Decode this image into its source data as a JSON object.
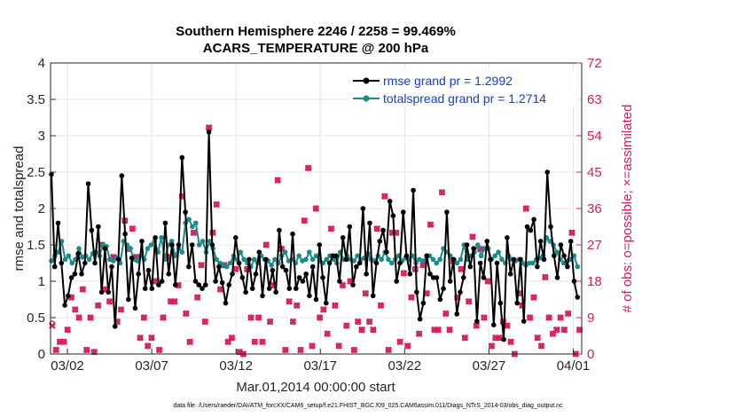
{
  "chart_data": {
    "type": "line",
    "title_line1": "Southern Hemisphere 2246 / 2258 = 99.469%",
    "title_line2": "ACARS_TEMPERATURE @ 200 hPa",
    "xlabel": "Mar.01,2014 00:00:00 start",
    "ylabel_left": "rmse and totalspread",
    "ylabel_right": "# of obs: o=possible; ×=assimilated",
    "ylim_left": [
      0,
      4
    ],
    "ylim_right": [
      0,
      72
    ],
    "xlim_days": [
      0,
      31.5
    ],
    "x_ticks": [
      {
        "day": 1,
        "label": "03/02"
      },
      {
        "day": 6,
        "label": "03/07"
      },
      {
        "day": 11,
        "label": "03/12"
      },
      {
        "day": 16,
        "label": "03/17"
      },
      {
        "day": 21,
        "label": "03/22"
      },
      {
        "day": 26,
        "label": "03/27"
      },
      {
        "day": 31,
        "label": "04/01"
      }
    ],
    "y_ticks_left": [
      "0",
      "0.5",
      "1",
      "1.5",
      "2",
      "2.5",
      "3",
      "3.5",
      "4"
    ],
    "y_ticks_right": [
      "0",
      "9",
      "18",
      "27",
      "36",
      "45",
      "54",
      "63",
      "72"
    ],
    "footer": "data file: /Users/raeder/DAI/ATM_forcXX/CAM6_setup/f.e21.FHIST_BGC.f09_025.CAM6assim.011/Diags_NTrS_2014-03/obs_diag_output.nc",
    "colors": {
      "rmse": "#000000",
      "spread": "#1a8a8a",
      "obs": "#d81b60",
      "legend_text": "#1a3ccf"
    },
    "series": [
      {
        "name": "rmse grand pr = 1.2992",
        "values": [
          2.47,
          1.2,
          1.8,
          1.25,
          0.67,
          0.8,
          1.05,
          1.1,
          1.38,
          1.1,
          1.25,
          2.34,
          1.7,
          1.25,
          1.75,
          0.85,
          1.45,
          0.85,
          1.2,
          0.38,
          1.3,
          2.45,
          1.65,
          0.75,
          1.32,
          0.63,
          1.1,
          1.55,
          0.9,
          1.15,
          0.9,
          1.6,
          0.95,
          1.0,
          1.8,
          1.1,
          1.5,
          0.95,
          1.5,
          2.7,
          1.95,
          1.2,
          1.5,
          1.0,
          0.95,
          0.9,
          0.95,
          3.05,
          1.5,
          1.0,
          1.2,
          0.98,
          0.7,
          0.95,
          1.1,
          1.6,
          1.25,
          1.05,
          0.85,
          1.3,
          0.9,
          1.1,
          1.4,
          0.8,
          1.3,
          0.9,
          1.15,
          0.85,
          1.7,
          1.2,
          1.15,
          0.9,
          1.65,
          0.9,
          1.05,
          1.0,
          1.1,
          0.8,
          1.2,
          0.75,
          1.5,
          1.05,
          0.7,
          1.25,
          1.35,
          1.35,
          1.0,
          1.6,
          1.3,
          1.75,
          0.95,
          1.2,
          1.25,
          2.0,
          1.1,
          1.8,
          0.8,
          1.25,
          1.55,
          1.7,
          1.4,
          2.1,
          1.9,
          1.0,
          1.25,
          1.95,
          1.35,
          1.1,
          2.25,
          0.85,
          0.48,
          0.7,
          1.35,
          1.1,
          1.05,
          1.05,
          0.75,
          0.9,
          1.95,
          1.0,
          1.3,
          0.55,
          0.85,
          1.05,
          1.5,
          1.2,
          1.45,
          0.45,
          1.25,
          1.05,
          1.55,
          1.3,
          0.4,
          1.25,
          0.7,
          0.2,
          1.6,
          1.1,
          1.3,
          0.7,
          1.3,
          0.45,
          1.75,
          1.7,
          1.85,
          1.2,
          1.55,
          1.3,
          2.5,
          1.75,
          1.35,
          1.05,
          1.5,
          1.35,
          1.2,
          1.55,
          1.0,
          0.78
        ]
      },
      {
        "name": "totalspread grand pr = 1.2714",
        "values": [
          1.28,
          1.35,
          1.4,
          1.55,
          1.3,
          1.35,
          1.25,
          1.3,
          1.45,
          1.33,
          1.35,
          1.3,
          1.38,
          1.4,
          1.35,
          1.5,
          1.48,
          1.3,
          1.28,
          1.32,
          1.25,
          1.55,
          1.5,
          1.45,
          1.3,
          1.28,
          1.35,
          1.3,
          1.45,
          1.5,
          1.55,
          1.4,
          1.6,
          1.3,
          1.5,
          1.55,
          1.35,
          1.45,
          1.4,
          1.8,
          1.85,
          1.75,
          1.8,
          1.5,
          1.55,
          1.4,
          1.55,
          1.45,
          1.3,
          1.25,
          1.22,
          1.2,
          1.25,
          1.35,
          1.3,
          1.4,
          1.3,
          1.25,
          1.2,
          1.3,
          1.25,
          1.35,
          1.3,
          1.28,
          1.22,
          1.3,
          1.25,
          1.35,
          1.4,
          1.28,
          1.3,
          1.25,
          1.35,
          1.28,
          1.3,
          1.4,
          1.3,
          1.35,
          1.28,
          1.25,
          1.3,
          1.35,
          1.3,
          1.25,
          1.4,
          1.3,
          1.35,
          1.3,
          1.28,
          1.35,
          1.3,
          1.32,
          1.38,
          1.3,
          1.28,
          1.35,
          1.3,
          1.4,
          1.3,
          1.25,
          1.3,
          1.35,
          1.28,
          1.32,
          1.3,
          1.35,
          1.25,
          1.3,
          1.28,
          1.3,
          1.35,
          1.3,
          1.25,
          1.3,
          1.45,
          1.4,
          1.35,
          1.3,
          1.25,
          1.3,
          1.5,
          1.3,
          1.35,
          1.4,
          1.5,
          1.35,
          1.45,
          1.45,
          1.3,
          1.35,
          1.4,
          1.3,
          1.25,
          1.35,
          1.3,
          1.28,
          1.3,
          1.25,
          1.22,
          1.25,
          1.25,
          1.3,
          1.32,
          1.35,
          1.6,
          1.55,
          1.5,
          1.4,
          1.3,
          1.25,
          1.28,
          1.3,
          1.35,
          1.2
        ]
      }
    ],
    "obs_possible": [
      7.5,
      1,
      3,
      3,
      6,
      14,
      11,
      9,
      16,
      1,
      9,
      0.5,
      12,
      27,
      16,
      13,
      24,
      8,
      11,
      33,
      26,
      31,
      24,
      4,
      9,
      2,
      4,
      18,
      1,
      9,
      24,
      13,
      13,
      17,
      39,
      10,
      3,
      30,
      14,
      22,
      8,
      56,
      30,
      37,
      16,
      22,
      3,
      4,
      21,
      0.5,
      0,
      21,
      9,
      3,
      9,
      3,
      27,
      8,
      17,
      43,
      26,
      1,
      13,
      8,
      12,
      1,
      33,
      46,
      2,
      36,
      9,
      11,
      5,
      31,
      12,
      2,
      17,
      7,
      18,
      1,
      8,
      6,
      15,
      8,
      6,
      31,
      12,
      39,
      1,
      30,
      30,
      3,
      20,
      2,
      14,
      21,
      5,
      22,
      15,
      32,
      6,
      6,
      40,
      10,
      6,
      23,
      14,
      21,
      4,
      13,
      29,
      7,
      26,
      9,
      18,
      2,
      4,
      4,
      8,
      7,
      3,
      0,
      15,
      12,
      36,
      9,
      14,
      4,
      2,
      19,
      9,
      5,
      6,
      9,
      6,
      10,
      30,
      0,
      6
    ],
    "obs_assimilated": [
      7,
      1,
      3,
      3,
      6,
      14,
      11,
      9,
      16,
      1,
      9,
      0.5,
      12,
      27,
      16,
      13,
      24,
      8,
      11,
      33,
      26,
      31,
      24,
      4,
      9,
      2,
      4,
      18,
      1,
      9,
      24,
      13,
      13,
      17,
      39,
      10,
      3,
      30,
      14,
      22,
      8,
      56,
      30,
      37,
      16,
      22,
      3,
      4,
      21,
      0.5,
      0,
      21,
      9,
      3,
      9,
      3,
      27,
      8,
      17,
      43,
      26,
      1,
      13,
      8,
      12,
      1,
      33,
      46,
      2,
      36,
      9,
      11,
      5,
      31,
      12,
      2,
      17,
      7,
      18,
      1,
      8,
      6,
      15,
      8,
      6,
      31,
      12,
      39,
      1,
      30,
      30,
      3,
      20,
      2,
      14,
      21,
      5,
      22,
      15,
      32,
      6,
      6,
      40,
      10,
      6,
      23,
      14,
      21,
      4,
      13,
      29,
      7,
      26,
      9,
      18,
      2,
      4,
      4,
      8,
      7,
      3,
      0,
      15,
      12,
      36,
      9,
      14,
      4,
      2,
      19,
      9,
      5,
      6,
      9,
      6,
      10,
      30,
      0,
      6
    ]
  }
}
